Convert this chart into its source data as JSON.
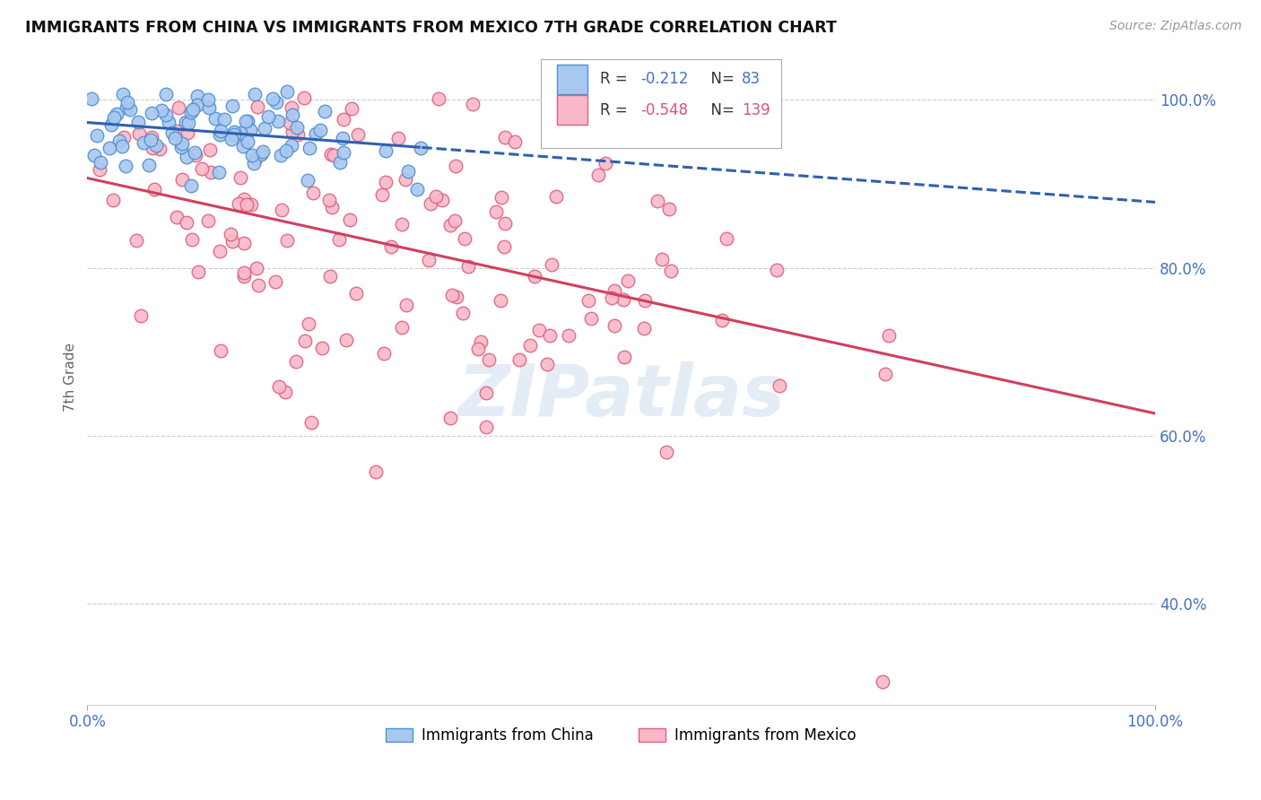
{
  "title": "IMMIGRANTS FROM CHINA VS IMMIGRANTS FROM MEXICO 7TH GRADE CORRELATION CHART",
  "source": "Source: ZipAtlas.com",
  "ylabel": "7th Grade",
  "legend_china": "Immigrants from China",
  "legend_mexico": "Immigrants from Mexico",
  "r_china": -0.212,
  "n_china": 83,
  "r_mexico": -0.548,
  "n_mexico": 139,
  "color_china_fill": "#A8C8F0",
  "color_china_edge": "#5090D0",
  "color_china_line": "#3060B0",
  "color_mexico_fill": "#F8B8C8",
  "color_mexico_edge": "#E06080",
  "color_mexico_line": "#D04060",
  "watermark": "ZIPatlas",
  "xlim": [
    0.0,
    1.0
  ],
  "ylim": [
    0.28,
    1.06
  ],
  "yticks": [
    0.4,
    0.6,
    0.8,
    1.0
  ],
  "ytick_labels": [
    "40.0%",
    "60.0%",
    "80.0%",
    "100.0%"
  ],
  "background_color": "#FFFFFF",
  "grid_color": "#CCCCCC"
}
